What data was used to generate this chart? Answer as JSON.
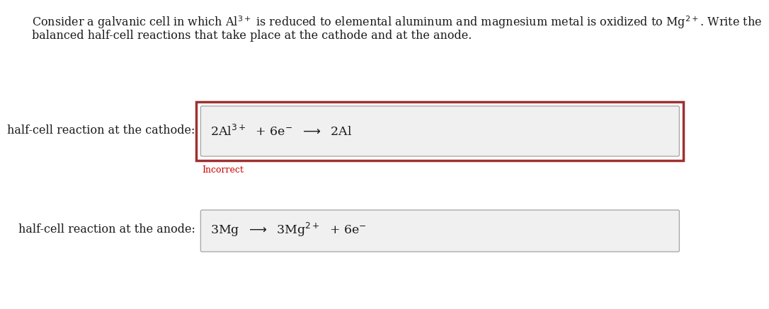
{
  "bg_color": "#ffffff",
  "text_color": "#1a1a1a",
  "incorrect_color": "#cc0000",
  "border_error_color": "#a03030",
  "border_normal_color": "#aaaaaa",
  "input_bg_color": "#f0f0f0",
  "font_size_para": 11.5,
  "font_size_label": 11.5,
  "font_size_reaction": 12.5,
  "font_size_incorrect": 9.0,
  "para_line1": "Consider a galvanic cell in which Al$^{3+}$ is reduced to elemental aluminum and magnesium metal is oxidized to Mg$^{2+}$. Write the",
  "para_line2": "balanced half-cell reactions that take place at the cathode and at the anode.",
  "label_cathode": "half-cell reaction at the cathode:",
  "label_anode": "half-cell reaction at the anode:",
  "incorrect_label": "Incorrect",
  "cathode_reaction_parts": [
    "2Al",
    "3+",
    " + 6e",
    "⁻",
    " → 2Al"
  ],
  "anode_reaction_parts": [
    "3Mg → 3Mg",
    "2+",
    " + 6e",
    "⁻"
  ]
}
